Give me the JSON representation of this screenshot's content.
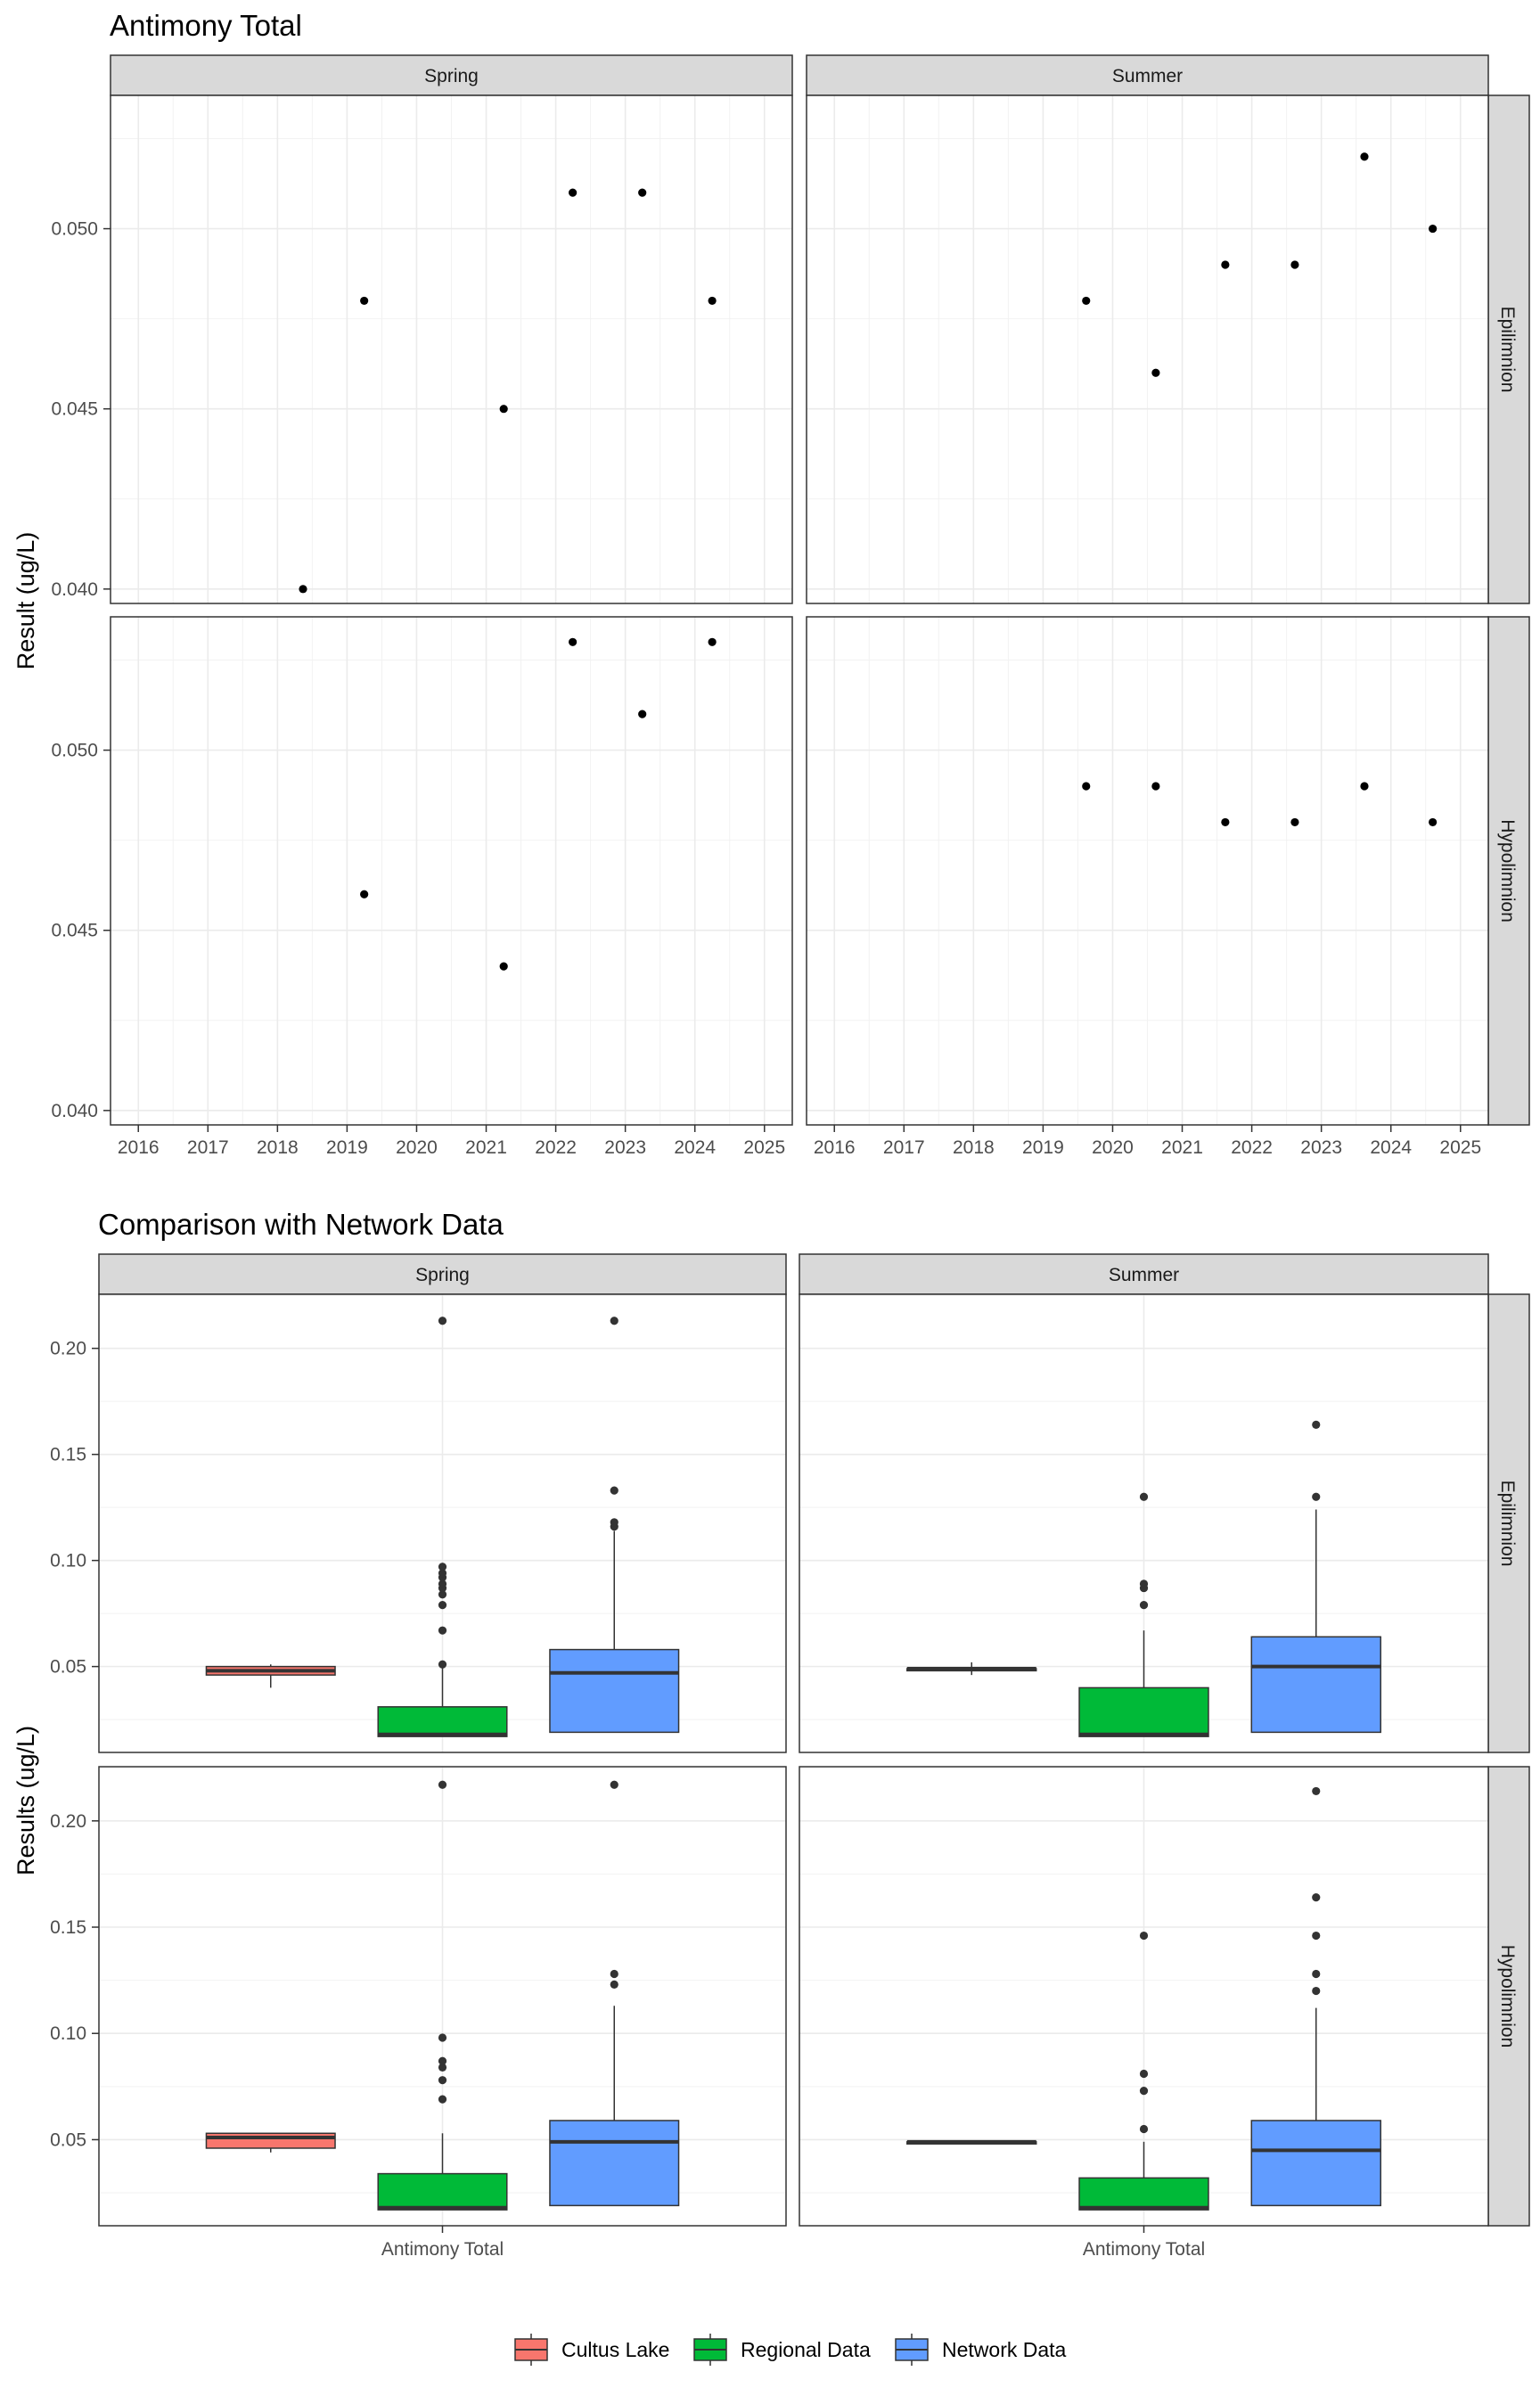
{
  "legend": {
    "items": [
      {
        "label": "Cultus Lake",
        "color": "#F8766D"
      },
      {
        "label": "Regional Data",
        "color": "#00BA38"
      },
      {
        "label": "Network Data",
        "color": "#619CFF"
      }
    ]
  },
  "chart_data": [
    {
      "type": "scatter",
      "title": "Antimony Total",
      "xlabel": "",
      "ylabel": "Result (ug/L)",
      "facet_columns": [
        "Spring",
        "Summer"
      ],
      "facet_rows": [
        "Epilimnion",
        "Hypolimnion"
      ],
      "x_ticks": [
        "2016",
        "2017",
        "2018",
        "2019",
        "2020",
        "2021",
        "2022",
        "2023",
        "2024",
        "2025"
      ],
      "xlim": [
        2015.6,
        2025.4
      ],
      "y_ticks": {
        "Epilimnion": [
          "0.040",
          "0.045",
          "0.050"
        ],
        "Hypolimnion": [
          "0.040",
          "0.045",
          "0.050"
        ]
      },
      "ylim": {
        "Epilimnion": [
          0.0396,
          0.0537
        ],
        "Hypolimnion": [
          0.0396,
          0.0537
        ]
      },
      "grid": true,
      "panels": [
        {
          "column": "Spring",
          "row": "Epilimnion",
          "x": [
            "2018-05-15",
            "2019-04-01",
            "2021-04-03",
            "2022-03-31",
            "2023-03-31",
            "2024-04-01"
          ],
          "y": [
            0.04,
            0.048,
            0.045,
            0.051,
            0.051,
            0.048
          ]
        },
        {
          "column": "Summer",
          "row": "Epilimnion",
          "x": [
            "2019-08-15",
            "2020-08-15",
            "2021-08-15",
            "2022-08-15",
            "2023-08-15",
            "2024-08-08"
          ],
          "y": [
            0.048,
            0.046,
            0.049,
            0.049,
            0.052,
            0.05
          ]
        },
        {
          "column": "Spring",
          "row": "Hypolimnion",
          "x": [
            "2019-04-01",
            "2021-04-03",
            "2022-03-31",
            "2023-03-31",
            "2024-04-01"
          ],
          "y": [
            0.046,
            0.044,
            0.053,
            0.051,
            0.053
          ]
        },
        {
          "column": "Summer",
          "row": "Hypolimnion",
          "x": [
            "2019-08-15",
            "2020-08-15",
            "2021-08-15",
            "2022-08-15",
            "2023-08-15",
            "2024-08-08"
          ],
          "y": [
            0.049,
            0.049,
            0.048,
            0.048,
            0.049,
            0.048
          ]
        }
      ]
    },
    {
      "type": "box",
      "title": "Comparison with Network Data",
      "xlabel": "",
      "ylabel": "Results (ug/L)",
      "facet_columns": [
        "Spring",
        "Summer"
      ],
      "facet_rows": [
        "Epilimnion",
        "Hypolimnion"
      ],
      "categories": [
        "Antimony Total"
      ],
      "series_names": [
        "Cultus Lake",
        "Regional Data",
        "Network Data"
      ],
      "y_ticks": [
        "0.05",
        "0.10",
        "0.15",
        "0.20"
      ],
      "ylim": {
        "Epilimnion": [
          0.0095,
          0.2255
        ],
        "Hypolimnion": [
          0.0095,
          0.2255
        ]
      },
      "grid": true,
      "legend_position": "bottom",
      "panels": [
        {
          "column": "Spring",
          "row": "Epilimnion",
          "boxes": [
            {
              "series": "Cultus Lake",
              "whisker_low": 0.04,
              "q1": 0.046,
              "median": 0.048,
              "q3": 0.05,
              "whisker_high": 0.051,
              "outliers": []
            },
            {
              "series": "Regional Data",
              "whisker_low": 0.017,
              "q1": 0.017,
              "median": 0.018,
              "q3": 0.031,
              "whisker_high": 0.05,
              "outliers": [
                0.051,
                0.067,
                0.079,
                0.084,
                0.087,
                0.089,
                0.092,
                0.094,
                0.097,
                0.213
              ]
            },
            {
              "series": "Network Data",
              "whisker_low": 0.019,
              "q1": 0.019,
              "median": 0.047,
              "q3": 0.058,
              "whisker_high": 0.114,
              "outliers": [
                0.116,
                0.118,
                0.133,
                0.213
              ]
            }
          ]
        },
        {
          "column": "Summer",
          "row": "Epilimnion",
          "boxes": [
            {
              "series": "Cultus Lake",
              "whisker_low": 0.046,
              "q1": 0.048,
              "median": 0.049,
              "q3": 0.049,
              "whisker_high": 0.052,
              "outliers": []
            },
            {
              "series": "Regional Data",
              "whisker_low": 0.017,
              "q1": 0.017,
              "median": 0.018,
              "q3": 0.04,
              "whisker_high": 0.067,
              "outliers": [
                0.079,
                0.087,
                0.089,
                0.13
              ]
            },
            {
              "series": "Network Data",
              "whisker_low": 0.019,
              "q1": 0.019,
              "median": 0.05,
              "q3": 0.064,
              "whisker_high": 0.124,
              "outliers": [
                0.13,
                0.164
              ]
            }
          ]
        },
        {
          "column": "Spring",
          "row": "Hypolimnion",
          "boxes": [
            {
              "series": "Cultus Lake",
              "whisker_low": 0.044,
              "q1": 0.046,
              "median": 0.051,
              "q3": 0.053,
              "whisker_high": 0.053,
              "outliers": []
            },
            {
              "series": "Regional Data",
              "whisker_low": 0.017,
              "q1": 0.017,
              "median": 0.018,
              "q3": 0.034,
              "whisker_high": 0.053,
              "outliers": [
                0.069,
                0.078,
                0.084,
                0.087,
                0.098,
                0.217
              ]
            },
            {
              "series": "Network Data",
              "whisker_low": 0.019,
              "q1": 0.019,
              "median": 0.049,
              "q3": 0.059,
              "whisker_high": 0.113,
              "outliers": [
                0.123,
                0.128,
                0.217
              ]
            }
          ]
        },
        {
          "column": "Summer",
          "row": "Hypolimnion",
          "boxes": [
            {
              "series": "Cultus Lake",
              "whisker_low": 0.048,
              "q1": 0.048,
              "median": 0.049,
              "q3": 0.049,
              "whisker_high": 0.049,
              "outliers": []
            },
            {
              "series": "Regional Data",
              "whisker_low": 0.017,
              "q1": 0.017,
              "median": 0.018,
              "q3": 0.032,
              "whisker_high": 0.049,
              "outliers": [
                0.055,
                0.073,
                0.081,
                0.146
              ]
            },
            {
              "series": "Network Data",
              "whisker_low": 0.019,
              "q1": 0.019,
              "median": 0.045,
              "q3": 0.059,
              "whisker_high": 0.112,
              "outliers": [
                0.12,
                0.128,
                0.146,
                0.164,
                0.214
              ]
            }
          ]
        }
      ]
    }
  ]
}
